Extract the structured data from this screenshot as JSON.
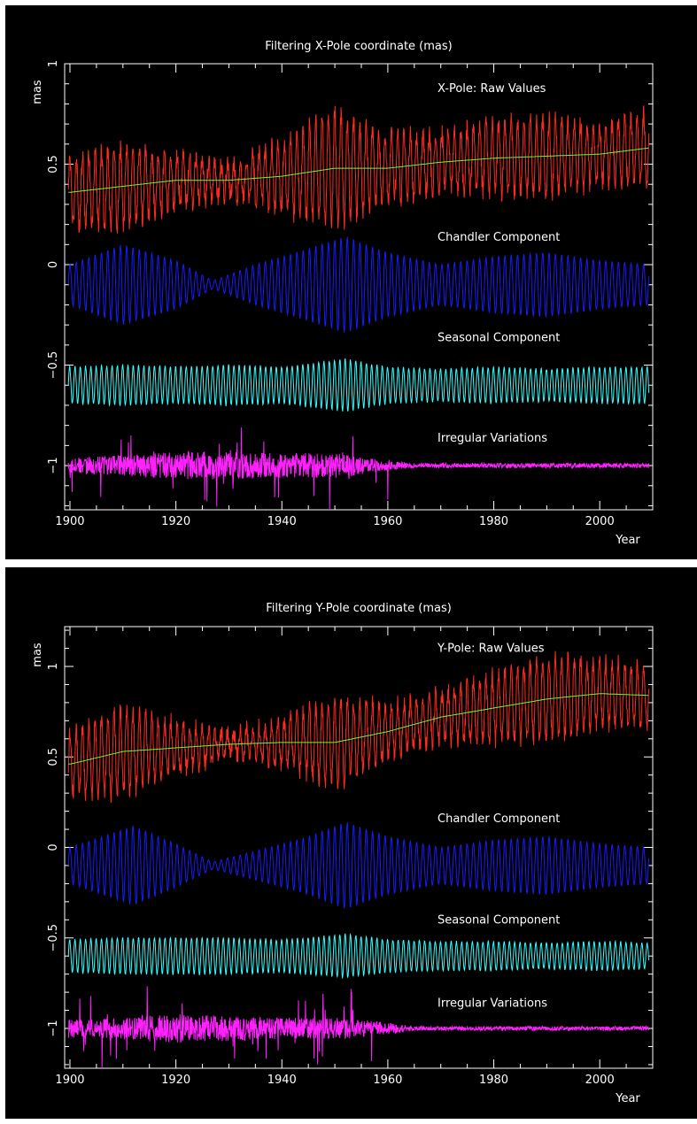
{
  "chart_data": [
    {
      "type": "line",
      "title": "Filtering X-Pole coordinate (mas)",
      "ylabel": "mas",
      "xlabel": "Year",
      "xlim": [
        1899,
        2010
      ],
      "ylim": [
        -1.22,
        1.0
      ],
      "x_ticks": [
        1900,
        1920,
        1940,
        1960,
        1980,
        2000
      ],
      "y_ticks": [
        -1,
        -0.5,
        0,
        0.5,
        1
      ],
      "y_tick_labels": [
        "−1",
        "−0.5",
        "0",
        "0.5",
        "1"
      ],
      "grid": false,
      "series": [
        {
          "name": "X-Pole: Raw Values",
          "color": "#ff2a1f",
          "label_y": 0.86,
          "trend_color": "#66ff33",
          "trend_x": [
            1900,
            1910,
            1920,
            1930,
            1940,
            1950,
            1960,
            1970,
            1980,
            1990,
            2000,
            2009
          ],
          "trend_y": [
            0.36,
            0.39,
            0.42,
            0.42,
            0.44,
            0.48,
            0.48,
            0.51,
            0.53,
            0.54,
            0.55,
            0.58
          ],
          "osc_period": 1.19,
          "osc_amp_x": [
            1900,
            1910,
            1920,
            1930,
            1940,
            1950,
            1960,
            1970,
            1980,
            1990,
            2000,
            2009
          ],
          "osc_amp_y": [
            0.17,
            0.2,
            0.13,
            0.07,
            0.17,
            0.28,
            0.16,
            0.14,
            0.17,
            0.19,
            0.14,
            0.17
          ],
          "noise": 0.05
        },
        {
          "name": "Chandler Component",
          "color": "#1a1aff",
          "label_y": 0.12,
          "center": -0.1,
          "osc_period": 1.19,
          "osc_amp_x": [
            1900,
            1910,
            1920,
            1927,
            1935,
            1945,
            1952,
            1960,
            1970,
            1980,
            1990,
            2000,
            2009
          ],
          "osc_amp_y": [
            0.1,
            0.2,
            0.12,
            0.02,
            0.1,
            0.18,
            0.24,
            0.16,
            0.1,
            0.14,
            0.16,
            0.12,
            0.1
          ],
          "noise": 0.0
        },
        {
          "name": "Seasonal Component",
          "color": "#33ffff",
          "label_y": -0.38,
          "center": -0.6,
          "osc_period": 1.0,
          "osc_amp_x": [
            1900,
            1910,
            1920,
            1930,
            1940,
            1952,
            1960,
            1970,
            1980,
            1990,
            2000,
            2009
          ],
          "osc_amp_y": [
            0.09,
            0.1,
            0.09,
            0.1,
            0.09,
            0.13,
            0.09,
            0.08,
            0.09,
            0.08,
            0.09,
            0.09
          ],
          "noise": 0.005
        },
        {
          "name": "Irregular Variations",
          "color": "#ff22ff",
          "label_y": -0.88,
          "center": -1.0,
          "osc_period": 0.0,
          "noise_x": [
            1900,
            1910,
            1920,
            1930,
            1940,
            1950,
            1958,
            1965,
            1980,
            2000,
            2009
          ],
          "noise_y": [
            0.04,
            0.05,
            0.07,
            0.07,
            0.06,
            0.07,
            0.03,
            0.012,
            0.012,
            0.012,
            0.012
          ],
          "spikes": 0.1
        }
      ]
    },
    {
      "type": "line",
      "title": "Filtering Y-Pole coordinate (mas)",
      "ylabel": "mas",
      "xlabel": "Year",
      "xlim": [
        1899,
        2010
      ],
      "ylim": [
        -1.22,
        1.22
      ],
      "x_ticks": [
        1900,
        1920,
        1940,
        1960,
        1980,
        2000
      ],
      "y_ticks": [
        -1,
        -0.5,
        0,
        0.5,
        1
      ],
      "y_tick_labels": [
        "−1",
        "−0.5",
        "0",
        "0.5",
        "1"
      ],
      "grid": false,
      "series": [
        {
          "name": "Y-Pole: Raw Values",
          "color": "#ff2a1f",
          "label_y": 1.08,
          "trend_color": "#66ff33",
          "trend_x": [
            1900,
            1910,
            1920,
            1930,
            1940,
            1950,
            1960,
            1970,
            1980,
            1990,
            2000,
            2009
          ],
          "trend_y": [
            0.46,
            0.53,
            0.55,
            0.57,
            0.58,
            0.58,
            0.64,
            0.72,
            0.77,
            0.82,
            0.85,
            0.84
          ],
          "osc_period": 1.19,
          "osc_amp_x": [
            1900,
            1910,
            1920,
            1930,
            1940,
            1950,
            1960,
            1970,
            1980,
            1990,
            2000,
            2009
          ],
          "osc_amp_y": [
            0.16,
            0.24,
            0.14,
            0.06,
            0.12,
            0.24,
            0.14,
            0.13,
            0.18,
            0.22,
            0.18,
            0.16
          ],
          "noise": 0.05
        },
        {
          "name": "Chandler Component",
          "color": "#1a1aff",
          "label_y": 0.14,
          "center": -0.1,
          "osc_period": 1.19,
          "osc_amp_x": [
            1900,
            1912,
            1920,
            1927,
            1935,
            1945,
            1952,
            1960,
            1970,
            1980,
            1990,
            2000,
            2009
          ],
          "osc_amp_y": [
            0.1,
            0.22,
            0.12,
            0.02,
            0.08,
            0.16,
            0.24,
            0.16,
            0.1,
            0.14,
            0.16,
            0.12,
            0.1
          ],
          "noise": 0.0
        },
        {
          "name": "Seasonal Component",
          "color": "#33ffff",
          "label_y": -0.42,
          "center": -0.6,
          "osc_period": 1.0,
          "osc_amp_x": [
            1900,
            1910,
            1920,
            1930,
            1940,
            1952,
            1960,
            1970,
            1980,
            1990,
            2000,
            2009
          ],
          "osc_amp_y": [
            0.09,
            0.1,
            0.1,
            0.1,
            0.09,
            0.12,
            0.09,
            0.08,
            0.08,
            0.07,
            0.08,
            0.07
          ],
          "noise": 0.005
        },
        {
          "name": "Irregular Variations",
          "color": "#ff22ff",
          "label_y": -0.88,
          "center": -1.0,
          "osc_period": 0.0,
          "noise_x": [
            1900,
            1910,
            1920,
            1930,
            1940,
            1950,
            1958,
            1965,
            1980,
            2000,
            2009
          ],
          "noise_y": [
            0.05,
            0.06,
            0.08,
            0.07,
            0.06,
            0.06,
            0.04,
            0.012,
            0.012,
            0.012,
            0.012
          ],
          "spikes": 0.12
        }
      ]
    }
  ]
}
